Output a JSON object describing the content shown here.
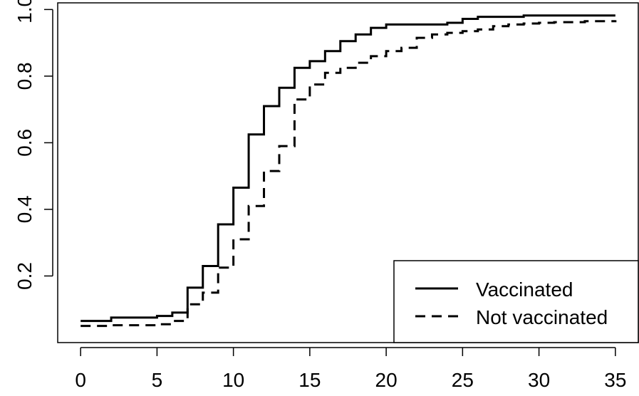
{
  "chart_data": {
    "type": "line",
    "title": "",
    "xlabel": "",
    "ylabel": "",
    "xlim": [
      -1.5,
      36.5
    ],
    "ylim": [
      0.0,
      1.02
    ],
    "x_ticks": [
      0,
      5,
      10,
      15,
      20,
      25,
      30,
      35
    ],
    "y_ticks": [
      0.2,
      0.4,
      0.6,
      0.8,
      1.0
    ],
    "x_tick_labels": [
      "0",
      "5",
      "10",
      "15",
      "20",
      "25",
      "30",
      "35"
    ],
    "y_tick_labels": [
      "0.2",
      "0.4",
      "0.6",
      "0.8",
      "1.0"
    ],
    "legend_position": "bottom-right",
    "series": [
      {
        "name": "Vaccinated",
        "style": "solid",
        "color": "#000000",
        "x": [
          0,
          2,
          5,
          6,
          7,
          8,
          9,
          10,
          11,
          12,
          13,
          14,
          15,
          16,
          17,
          18,
          19,
          20,
          21,
          22,
          23,
          24,
          25,
          26,
          27,
          28,
          29,
          30,
          31,
          32,
          33,
          34,
          35
        ],
        "y": [
          0.065,
          0.075,
          0.08,
          0.09,
          0.165,
          0.23,
          0.355,
          0.465,
          0.625,
          0.71,
          0.765,
          0.825,
          0.845,
          0.875,
          0.905,
          0.925,
          0.945,
          0.955,
          0.955,
          0.955,
          0.955,
          0.96,
          0.972,
          0.978,
          0.978,
          0.978,
          0.982,
          0.982,
          0.982,
          0.982,
          0.982,
          0.982,
          0.982
        ]
      },
      {
        "name": "Not vaccinated",
        "style": "dashed",
        "color": "#000000",
        "x": [
          0,
          2,
          5,
          6,
          7,
          8,
          9,
          10,
          11,
          12,
          13,
          14,
          15,
          16,
          17,
          18,
          19,
          20,
          21,
          22,
          23,
          24,
          25,
          26,
          27,
          28,
          29,
          30,
          31,
          32,
          33,
          34,
          35
        ],
        "y": [
          0.05,
          0.052,
          0.055,
          0.065,
          0.115,
          0.15,
          0.225,
          0.31,
          0.41,
          0.515,
          0.59,
          0.73,
          0.775,
          0.81,
          0.825,
          0.84,
          0.86,
          0.875,
          0.885,
          0.915,
          0.925,
          0.93,
          0.935,
          0.94,
          0.95,
          0.955,
          0.958,
          0.96,
          0.962,
          0.962,
          0.965,
          0.965,
          0.968
        ]
      }
    ]
  }
}
